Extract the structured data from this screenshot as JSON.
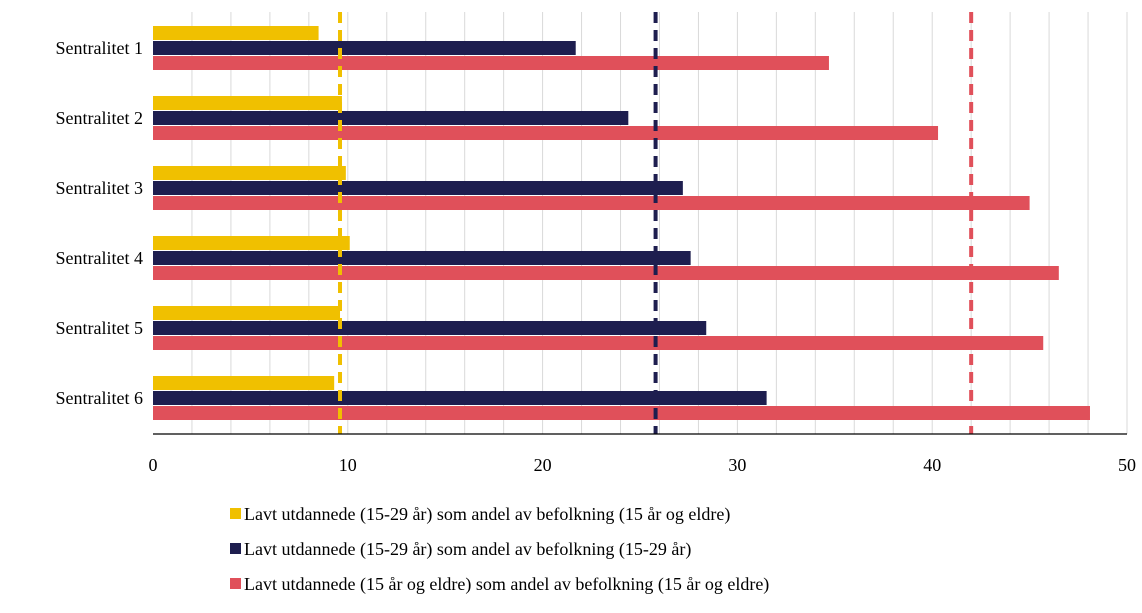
{
  "chart_data": {
    "type": "bar",
    "orientation": "horizontal",
    "categories": [
      "Sentralitet 1",
      "Sentralitet 2",
      "Sentralitet 3",
      "Sentralitet 4",
      "Sentralitet 5",
      "Sentralitet 6"
    ],
    "series": [
      {
        "name": "Lavt utdannede (15-29 år) som andel av befolkning (15 år og eldre)",
        "color": "#f0c000",
        "values": [
          8.5,
          9.7,
          9.9,
          10.1,
          9.6,
          9.3
        ],
        "reference_line": 9.6
      },
      {
        "name": "Lavt utdannede (15-29 år) som andel av befolkning (15-29 år)",
        "color": "#1e1e4f",
        "values": [
          21.7,
          24.4,
          27.2,
          27.6,
          28.4,
          31.5
        ],
        "reference_line": 25.8
      },
      {
        "name": "Lavt utdannede (15 år og eldre) som andel av befolkning (15 år og eldre)",
        "color": "#e0505a",
        "values": [
          34.7,
          40.3,
          45.0,
          46.5,
          45.7,
          48.1
        ],
        "reference_line": 42.0
      }
    ],
    "xlim": [
      0,
      50
    ],
    "xticks": [
      "0",
      "10",
      "20",
      "30",
      "40",
      "50"
    ],
    "grid": true,
    "legend_position": "bottom"
  }
}
